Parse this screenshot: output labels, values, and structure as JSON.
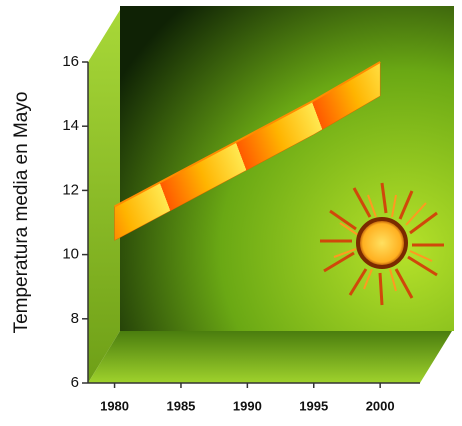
{
  "chart_data": {
    "type": "line",
    "y_label": "Temperatura media en Mayo",
    "x": [
      1980,
      1985,
      1990,
      1995,
      2000
    ],
    "values": [
      11.5,
      12.6,
      13.7,
      14.8,
      16
    ],
    "color": "#ff8c00",
    "xlim": [
      1978,
      2003
    ],
    "xticks": [
      1980,
      1985,
      1990,
      1995,
      2000
    ],
    "ylim": [
      6,
      16
    ],
    "yticks": [
      6,
      8,
      10,
      12,
      14,
      16
    ]
  }
}
